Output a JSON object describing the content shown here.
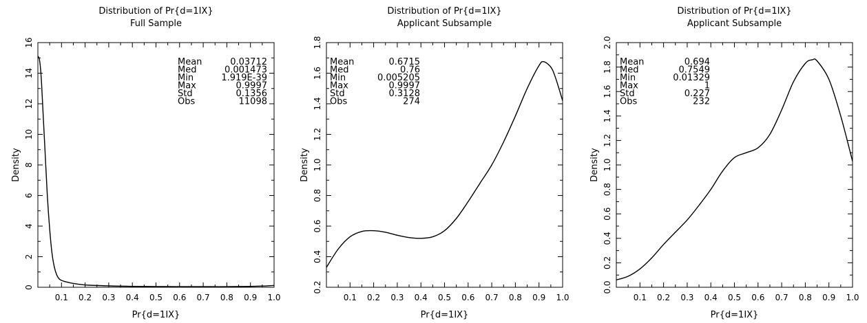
{
  "chart_data": [
    {
      "type": "line",
      "title": "Distribution of Pr{d=1IX}",
      "subtitle": "Full Sample",
      "xlabel": "Pr{d=1IX}",
      "ylabel": "Density",
      "xlim": [
        0,
        1.0
      ],
      "ylim": [
        0,
        16
      ],
      "xticks": [
        "0.1",
        "0.2",
        "0.3",
        "0.4",
        "0.5",
        "0.6",
        "0.7",
        "0.8",
        "0.9",
        "1.0"
      ],
      "yticks": [
        "0",
        "2",
        "4",
        "6",
        "8",
        "10",
        "12",
        "14",
        "16"
      ],
      "stats": [
        {
          "label": "Mean",
          "value": "0.03712"
        },
        {
          "label": "Med",
          "value": "0.001473"
        },
        {
          "label": "Min",
          "value": "1.919E-39"
        },
        {
          "label": "Max",
          "value": "0.9997"
        },
        {
          "label": "Std",
          "value": "0.1356"
        },
        {
          "label": "Obs",
          "value": "11098"
        }
      ],
      "x": [
        0.0,
        0.005,
        0.01,
        0.015,
        0.02,
        0.03,
        0.04,
        0.05,
        0.06,
        0.07,
        0.08,
        0.09,
        0.1,
        0.12,
        0.15,
        0.2,
        0.3,
        0.4,
        0.5,
        0.6,
        0.7,
        0.8,
        0.9,
        0.95,
        1.0
      ],
      "y": [
        15.1,
        15.0,
        14.5,
        13.5,
        12.0,
        9.0,
        6.0,
        3.8,
        2.2,
        1.3,
        0.8,
        0.55,
        0.45,
        0.35,
        0.25,
        0.15,
        0.09,
        0.06,
        0.05,
        0.04,
        0.04,
        0.04,
        0.06,
        0.08,
        0.12
      ]
    },
    {
      "type": "line",
      "title": "Distribution of Pr{d=1IX}",
      "subtitle": "Applicant Subsample",
      "xlabel": "Pr{d=1IX}",
      "ylabel": "Density",
      "xlim": [
        0,
        1.0
      ],
      "ylim": [
        0.2,
        1.8
      ],
      "xticks": [
        "0.1",
        "0.2",
        "0.3",
        "0.4",
        "0.5",
        "0.6",
        "0.7",
        "0.8",
        "0.9",
        "1.0"
      ],
      "yticks": [
        "0.2",
        "0.4",
        "0.6",
        "0.8",
        "1.0",
        "1.2",
        "1.4",
        "1.6",
        "1.8"
      ],
      "stats": [
        {
          "label": "Mean",
          "value": "0.6715"
        },
        {
          "label": "Med",
          "value": "0.76"
        },
        {
          "label": "Min",
          "value": "0.005205"
        },
        {
          "label": "Max",
          "value": "0.9997"
        },
        {
          "label": "Std",
          "value": "0.3128"
        },
        {
          "label": "Obs",
          "value": "274"
        }
      ],
      "x": [
        0.0,
        0.05,
        0.1,
        0.15,
        0.2,
        0.25,
        0.3,
        0.35,
        0.4,
        0.45,
        0.5,
        0.55,
        0.6,
        0.65,
        0.7,
        0.75,
        0.8,
        0.85,
        0.9,
        0.92,
        0.95,
        0.97,
        1.0
      ],
      "y": [
        0.33,
        0.45,
        0.53,
        0.565,
        0.57,
        0.56,
        0.54,
        0.525,
        0.52,
        0.53,
        0.57,
        0.65,
        0.76,
        0.88,
        1.0,
        1.15,
        1.32,
        1.5,
        1.65,
        1.675,
        1.64,
        1.57,
        1.42
      ]
    },
    {
      "type": "line",
      "title": "Distribution of Pr{d=1IX}",
      "subtitle": "Applicant Subsample",
      "xlabel": "Pr{d=1IX}",
      "ylabel": "Density",
      "xlim": [
        0,
        1.0
      ],
      "ylim": [
        0.0,
        2.0
      ],
      "xticks": [
        "0.1",
        "0.2",
        "0.3",
        "0.4",
        "0.5",
        "0.6",
        "0.7",
        "0.8",
        "0.9",
        "1.0"
      ],
      "yticks": [
        "0.0",
        "0.2",
        "0.4",
        "0.6",
        "0.8",
        "1.0",
        "1.2",
        "1.4",
        "1.6",
        "1.8",
        "2.0"
      ],
      "stats": [
        {
          "label": "Mean",
          "value": "0.694"
        },
        {
          "label": "Med",
          "value": "0.7549"
        },
        {
          "label": "Min",
          "value": "0.01329"
        },
        {
          "label": "Max",
          "value": "1"
        },
        {
          "label": "Std",
          "value": "0.227"
        },
        {
          "label": "Obs",
          "value": "232"
        }
      ],
      "x": [
        0.0,
        0.05,
        0.1,
        0.15,
        0.2,
        0.25,
        0.3,
        0.35,
        0.4,
        0.45,
        0.5,
        0.55,
        0.6,
        0.65,
        0.7,
        0.75,
        0.8,
        0.83,
        0.85,
        0.9,
        0.95,
        1.0
      ],
      "y": [
        0.06,
        0.09,
        0.15,
        0.24,
        0.35,
        0.45,
        0.55,
        0.67,
        0.8,
        0.95,
        1.06,
        1.1,
        1.14,
        1.25,
        1.45,
        1.68,
        1.83,
        1.86,
        1.85,
        1.7,
        1.4,
        1.03
      ]
    }
  ]
}
